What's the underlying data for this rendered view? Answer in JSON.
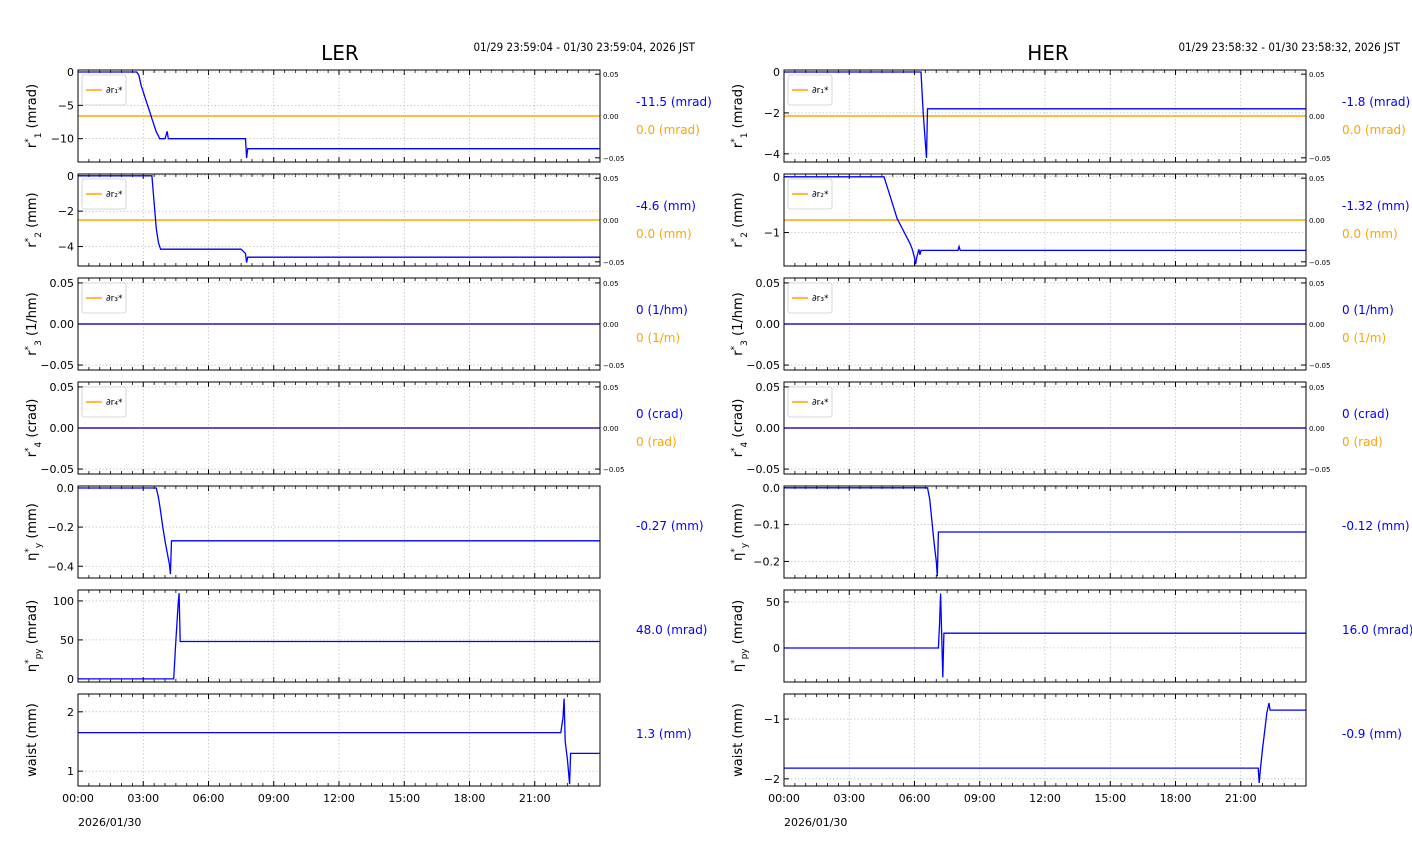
{
  "colors": {
    "series": "#0000ff",
    "delta": "#ffa500",
    "grid": "#b0b0b0",
    "axis": "#000000"
  },
  "chart_data": [
    {
      "side": "LER",
      "title": "LER",
      "range_text": "01/29 23:59:04 - 01/30 23:59:04, 2026 JST",
      "date_label": "2026/01/30",
      "x_ticks": [
        "00:00",
        "03:00",
        "06:00",
        "09:00",
        "12:00",
        "15:00",
        "18:00",
        "21:00"
      ],
      "x_range_hours": [
        0,
        24
      ],
      "panels": [
        {
          "type": "line",
          "ylabel_main": "r",
          "ylabel_sup": "*",
          "ylabel_sub": "1",
          "ylabel_unit": " (mrad)",
          "ylim": [
            -13.5,
            0.3
          ],
          "yticks": [
            0,
            -5,
            -10
          ],
          "ytick_labels": [
            "0",
            "−5",
            "−10"
          ],
          "right_axis": true,
          "rlim": [
            -0.055,
            0.055
          ],
          "rticks": [
            0.05,
            0,
            -0.05
          ],
          "rtick_labels": [
            "0.05",
            "0.00",
            "−0.05"
          ],
          "legend": "∂r₁*",
          "series": [
            [
              0,
              0
            ],
            [
              2.7,
              0
            ],
            [
              2.8,
              -0.5
            ],
            [
              2.9,
              -2
            ],
            [
              3.0,
              -3
            ],
            [
              3.1,
              -4
            ],
            [
              3.2,
              -5
            ],
            [
              3.3,
              -6
            ],
            [
              3.4,
              -7
            ],
            [
              3.5,
              -8
            ],
            [
              3.6,
              -9
            ],
            [
              3.7,
              -9.6
            ],
            [
              3.75,
              -10
            ],
            [
              4.0,
              -10
            ],
            [
              4.1,
              -8.9
            ],
            [
              4.15,
              -10
            ],
            [
              7.7,
              -10
            ],
            [
              7.75,
              -12.9
            ],
            [
              7.8,
              -11.5
            ],
            [
              24,
              -11.5
            ]
          ],
          "delta_value": 0.0,
          "current_value": "-11.5 (mrad)",
          "delta_text": "0.0 (mrad)"
        },
        {
          "type": "line",
          "ylabel_main": "r",
          "ylabel_sup": "*",
          "ylabel_sub": "2",
          "ylabel_unit": " (mm)",
          "ylim": [
            -5.1,
            0.1
          ],
          "yticks": [
            0,
            -2,
            -4
          ],
          "ytick_labels": [
            "0",
            "−2",
            "−4"
          ],
          "right_axis": true,
          "rlim": [
            -0.055,
            0.055
          ],
          "rticks": [
            0.05,
            0,
            -0.05
          ],
          "rtick_labels": [
            "0.05",
            "0.00",
            "−0.05"
          ],
          "legend": "∂r₂*",
          "series": [
            [
              0,
              0
            ],
            [
              3.4,
              0
            ],
            [
              3.5,
              -1.5
            ],
            [
              3.6,
              -3
            ],
            [
              3.7,
              -3.8
            ],
            [
              3.8,
              -4.15
            ],
            [
              7.5,
              -4.15
            ],
            [
              7.7,
              -4.4
            ],
            [
              7.75,
              -4.9
            ],
            [
              7.8,
              -4.6
            ],
            [
              24,
              -4.6
            ]
          ],
          "delta_value": 0.0,
          "current_value": "-4.6 (mm)",
          "delta_text": "0.0 (mm)"
        },
        {
          "type": "line",
          "ylabel_main": "r",
          "ylabel_sup": "*",
          "ylabel_sub": "3",
          "ylabel_unit": " (1/hm)",
          "ylim": [
            -0.056,
            0.056
          ],
          "yticks": [
            0.05,
            0,
            -0.05
          ],
          "ytick_labels": [
            "0.05",
            "0.00",
            "−0.05"
          ],
          "right_axis": true,
          "rlim": [
            -0.056,
            0.056
          ],
          "rticks": [
            0.05,
            0,
            -0.05
          ],
          "rtick_labels": [
            "0.05",
            "0.00",
            "−0.05"
          ],
          "legend": "∂r₃*",
          "series": [
            [
              0,
              0
            ],
            [
              24,
              0
            ]
          ],
          "delta_value": 0.0,
          "current_value": "0 (1/hm)",
          "delta_text": "0 (1/m)"
        },
        {
          "type": "line",
          "ylabel_main": "r",
          "ylabel_sup": "*",
          "ylabel_sub": "4",
          "ylabel_unit": " (crad)",
          "ylim": [
            -0.056,
            0.056
          ],
          "yticks": [
            0.05,
            0,
            -0.05
          ],
          "ytick_labels": [
            "0.05",
            "0.00",
            "−0.05"
          ],
          "right_axis": true,
          "rlim": [
            -0.056,
            0.056
          ],
          "rticks": [
            0.05,
            0,
            -0.05
          ],
          "rtick_labels": [
            "0.05",
            "0.00",
            "−0.05"
          ],
          "legend": "∂r₄*",
          "series": [
            [
              0,
              0
            ],
            [
              24,
              0
            ]
          ],
          "delta_value": 0.0,
          "current_value": "0 (crad)",
          "delta_text": "0 (rad)"
        },
        {
          "type": "line",
          "ylabel_main": "η",
          "ylabel_sup": "*",
          "ylabel_sub": "y",
          "ylabel_unit": " (mm)",
          "ylim": [
            -0.46,
            0.01
          ],
          "yticks": [
            0,
            -0.2,
            -0.4
          ],
          "ytick_labels": [
            "0.0",
            "−0.2",
            "−0.4"
          ],
          "right_axis": false,
          "series": [
            [
              0,
              0
            ],
            [
              3.6,
              0
            ],
            [
              3.7,
              -0.05
            ],
            [
              3.8,
              -0.12
            ],
            [
              3.9,
              -0.2
            ],
            [
              4.0,
              -0.27
            ],
            [
              4.1,
              -0.33
            ],
            [
              4.2,
              -0.39
            ],
            [
              4.25,
              -0.44
            ],
            [
              4.3,
              -0.27
            ],
            [
              24,
              -0.27
            ]
          ],
          "current_value": "-0.27 (mm)"
        },
        {
          "type": "line",
          "ylabel_main": "η",
          "ylabel_sup": "*",
          "ylabel_sub": "py",
          "ylabel_unit": " (mrad)",
          "ylim": [
            -4,
            114
          ],
          "yticks": [
            100,
            50,
            0
          ],
          "ytick_labels": [
            "100",
            "50",
            "0"
          ],
          "right_axis": false,
          "series": [
            [
              0,
              0
            ],
            [
              4.4,
              0
            ],
            [
              4.5,
              50
            ],
            [
              4.6,
              95
            ],
            [
              4.65,
              110
            ],
            [
              4.7,
              48
            ],
            [
              24,
              48
            ]
          ],
          "current_value": "48.0 (mrad)"
        },
        {
          "type": "line",
          "ylabel_main": "waist",
          "ylabel_sup": "",
          "ylabel_sub": "",
          "ylabel_unit": " (mm)",
          "ylim": [
            0.75,
            2.3
          ],
          "yticks": [
            2,
            1
          ],
          "ytick_labels": [
            "2",
            "1"
          ],
          "right_axis": false,
          "series": [
            [
              0,
              1.65
            ],
            [
              22.2,
              1.65
            ],
            [
              22.3,
              1.9
            ],
            [
              22.35,
              2.22
            ],
            [
              22.4,
              1.5
            ],
            [
              22.5,
              1.2
            ],
            [
              22.6,
              0.78
            ],
            [
              22.65,
              1.3
            ],
            [
              24,
              1.3
            ]
          ],
          "current_value": "1.3 (mm)"
        }
      ]
    },
    {
      "side": "HER",
      "title": "HER",
      "range_text": "01/29 23:58:32 - 01/30 23:58:32, 2026 JST",
      "date_label": "2026/01/30",
      "x_ticks": [
        "00:00",
        "03:00",
        "06:00",
        "09:00",
        "12:00",
        "15:00",
        "18:00",
        "21:00"
      ],
      "x_range_hours": [
        0,
        24
      ],
      "panels": [
        {
          "type": "line",
          "ylabel_main": "r",
          "ylabel_sup": "*",
          "ylabel_sub": "1",
          "ylabel_unit": " (mrad)",
          "ylim": [
            -4.4,
            0.1
          ],
          "yticks": [
            0,
            -2,
            -4
          ],
          "ytick_labels": [
            "0",
            "−2",
            "−4"
          ],
          "right_axis": true,
          "rlim": [
            -0.055,
            0.055
          ],
          "rticks": [
            0.05,
            0,
            -0.05
          ],
          "rtick_labels": [
            "0.05",
            "0.00",
            "−0.05"
          ],
          "legend": "∂r₁*",
          "series": [
            [
              0,
              0
            ],
            [
              6.3,
              0
            ],
            [
              6.4,
              -2
            ],
            [
              6.5,
              -3.5
            ],
            [
              6.55,
              -4.2
            ],
            [
              6.6,
              -1.8
            ],
            [
              24,
              -1.8
            ]
          ],
          "delta_value": 0.0,
          "current_value": "-1.8 (mrad)",
          "delta_text": "0.0 (mrad)"
        },
        {
          "type": "line",
          "ylabel_main": "r",
          "ylabel_sup": "*",
          "ylabel_sub": "2",
          "ylabel_unit": " (mm)",
          "ylim": [
            -1.6,
            0.05
          ],
          "yticks": [
            0,
            -1
          ],
          "ytick_labels": [
            "0",
            "−1"
          ],
          "right_axis": true,
          "rlim": [
            -0.055,
            0.055
          ],
          "rticks": [
            0.05,
            0,
            -0.05
          ],
          "rtick_labels": [
            "0.05",
            "0.00",
            "−0.05"
          ],
          "legend": "∂r₂*",
          "series": [
            [
              0,
              0
            ],
            [
              4.6,
              0
            ],
            [
              4.8,
              -0.25
            ],
            [
              5.0,
              -0.5
            ],
            [
              5.2,
              -0.75
            ],
            [
              5.4,
              -0.9
            ],
            [
              5.6,
              -1.05
            ],
            [
              5.8,
              -1.2
            ],
            [
              5.9,
              -1.3
            ],
            [
              6.0,
              -1.45
            ],
            [
              6.05,
              -1.57
            ],
            [
              6.1,
              -1.45
            ],
            [
              6.2,
              -1.3
            ],
            [
              6.25,
              -1.4
            ],
            [
              6.3,
              -1.32
            ],
            [
              8.0,
              -1.32
            ],
            [
              8.05,
              -1.25
            ],
            [
              8.1,
              -1.32
            ],
            [
              24,
              -1.32
            ]
          ],
          "delta_value": 0.0,
          "current_value": "-1.32 (mm)",
          "delta_text": "0.0 (mm)"
        },
        {
          "type": "line",
          "ylabel_main": "r",
          "ylabel_sup": "*",
          "ylabel_sub": "3",
          "ylabel_unit": " (1/hm)",
          "ylim": [
            -0.056,
            0.056
          ],
          "yticks": [
            0.05,
            0,
            -0.05
          ],
          "ytick_labels": [
            "0.05",
            "0.00",
            "−0.05"
          ],
          "right_axis": true,
          "rlim": [
            -0.056,
            0.056
          ],
          "rticks": [
            0.05,
            0,
            -0.05
          ],
          "rtick_labels": [
            "0.05",
            "0.00",
            "−0.05"
          ],
          "legend": "∂r₃*",
          "series": [
            [
              0,
              0
            ],
            [
              24,
              0
            ]
          ],
          "delta_value": 0.0,
          "current_value": "0 (1/hm)",
          "delta_text": "0 (1/m)"
        },
        {
          "type": "line",
          "ylabel_main": "r",
          "ylabel_sup": "*",
          "ylabel_sub": "4",
          "ylabel_unit": " (crad)",
          "ylim": [
            -0.056,
            0.056
          ],
          "yticks": [
            0.05,
            0,
            -0.05
          ],
          "ytick_labels": [
            "0.05",
            "0.00",
            "−0.05"
          ],
          "right_axis": true,
          "rlim": [
            -0.056,
            0.056
          ],
          "rticks": [
            0.05,
            0,
            -0.05
          ],
          "rtick_labels": [
            "0.05",
            "0.00",
            "−0.05"
          ],
          "legend": "∂r₄*",
          "series": [
            [
              0,
              0
            ],
            [
              24,
              0
            ]
          ],
          "delta_value": 0.0,
          "current_value": "0 (crad)",
          "delta_text": "0 (rad)"
        },
        {
          "type": "line",
          "ylabel_main": "η",
          "ylabel_sup": "*",
          "ylabel_sub": "y",
          "ylabel_unit": " (mm)",
          "ylim": [
            -0.245,
            0.005
          ],
          "yticks": [
            0,
            -0.1,
            -0.2
          ],
          "ytick_labels": [
            "0.0",
            "−0.1",
            "−0.2"
          ],
          "right_axis": false,
          "series": [
            [
              0,
              0
            ],
            [
              6.6,
              0
            ],
            [
              6.7,
              -0.03
            ],
            [
              6.8,
              -0.09
            ],
            [
              6.9,
              -0.15
            ],
            [
              7.0,
              -0.2
            ],
            [
              7.05,
              -0.24
            ],
            [
              7.1,
              -0.12
            ],
            [
              24,
              -0.12
            ]
          ],
          "current_value": "-0.12 (mm)"
        },
        {
          "type": "line",
          "ylabel_main": "η",
          "ylabel_sup": "*",
          "ylabel_sub": "py",
          "ylabel_unit": " (mrad)",
          "ylim": [
            -37,
            63
          ],
          "yticks": [
            50,
            0
          ],
          "ytick_labels": [
            "50",
            "0"
          ],
          "right_axis": false,
          "series": [
            [
              0,
              0
            ],
            [
              7.1,
              0
            ],
            [
              7.15,
              25
            ],
            [
              7.2,
              59
            ],
            [
              7.3,
              -32
            ],
            [
              7.35,
              16
            ],
            [
              24,
              16
            ]
          ],
          "current_value": "16.0 (mrad)"
        },
        {
          "type": "line",
          "ylabel_main": "waist",
          "ylabel_sup": "",
          "ylabel_sub": "",
          "ylabel_unit": " (mm)",
          "ylim": [
            -2.12,
            -0.58
          ],
          "yticks": [
            -1,
            -2
          ],
          "ytick_labels": [
            "−1",
            "−2"
          ],
          "right_axis": false,
          "series": [
            [
              0,
              -1.82
            ],
            [
              21.8,
              -1.82
            ],
            [
              21.85,
              -2.07
            ],
            [
              21.9,
              -1.85
            ],
            [
              22.0,
              -1.5
            ],
            [
              22.1,
              -1.2
            ],
            [
              22.2,
              -0.9
            ],
            [
              22.3,
              -0.73
            ],
            [
              22.35,
              -0.85
            ],
            [
              22.4,
              -0.85
            ],
            [
              24,
              -0.85
            ]
          ],
          "current_value": "-0.9 (mm)"
        }
      ]
    }
  ]
}
